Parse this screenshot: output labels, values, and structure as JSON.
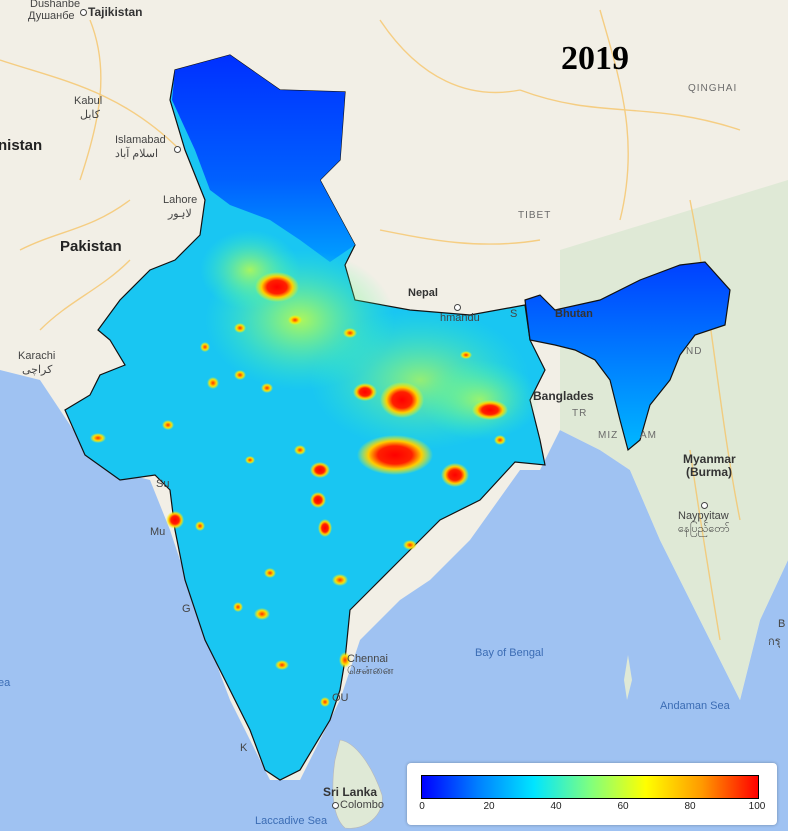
{
  "title": "2019",
  "labels": {
    "dushanbe": "Dushanbe",
    "dushanbe_local": "Душанбе",
    "tajikistan": "Tajikistan",
    "kabul": "Kabul",
    "kabul_local": "کابل",
    "afghanistan_partial": "nistan",
    "islamabad": "Islamabad",
    "islamabad_local": "اسلام آباد",
    "lahore": "Lahore",
    "lahore_local": "لاہور",
    "pakistan": "Pakistan",
    "karachi": "Karachi",
    "karachi_local": "کراچی",
    "qinghai": "QINGHAI",
    "tibet": "TIBET",
    "nepal": "Nepal",
    "kathmandu_partial": "hmandu",
    "sikkim_partial": "S",
    "bhutan": "Bhutan",
    "bangladesh": "Banglades",
    "myanmar": "Myanmar",
    "burma": "(Burma)",
    "naypyitaw": "Naypyitaw",
    "naypyitaw_local": "နေပြည်တော်",
    "mizoram_partial": "MIZ",
    "mizoram_partial2": "AM",
    "and_partial": "ND",
    "tr_partial": "TR",
    "chennai": "Chennai",
    "chennai_local": "சென்னை",
    "bay_of_bengal": "Bay of Bengal",
    "andaman_sea": "Andaman Sea",
    "sri_lanka": "Sri Lanka",
    "colombo": "Colombo",
    "laccadive_sea": "Laccadive Sea",
    "sea_partial": "ea",
    "mumbai_partial": "Mu",
    "surat_partial": "Su",
    "goa_partial": "G",
    "kerala_partial": "K",
    "pondy_partial": "OU",
    "right_edge": "B",
    "right_edge2": "กรุ"
  },
  "legend": {
    "min": 0,
    "max": 100,
    "ticks": [
      "0",
      "20",
      "40",
      "60",
      "80",
      "100"
    ],
    "colors": [
      "#0000ff",
      "#0080ff",
      "#00e5ff",
      "#7fff7f",
      "#ffff00",
      "#ff9900",
      "#ff0000"
    ]
  }
}
